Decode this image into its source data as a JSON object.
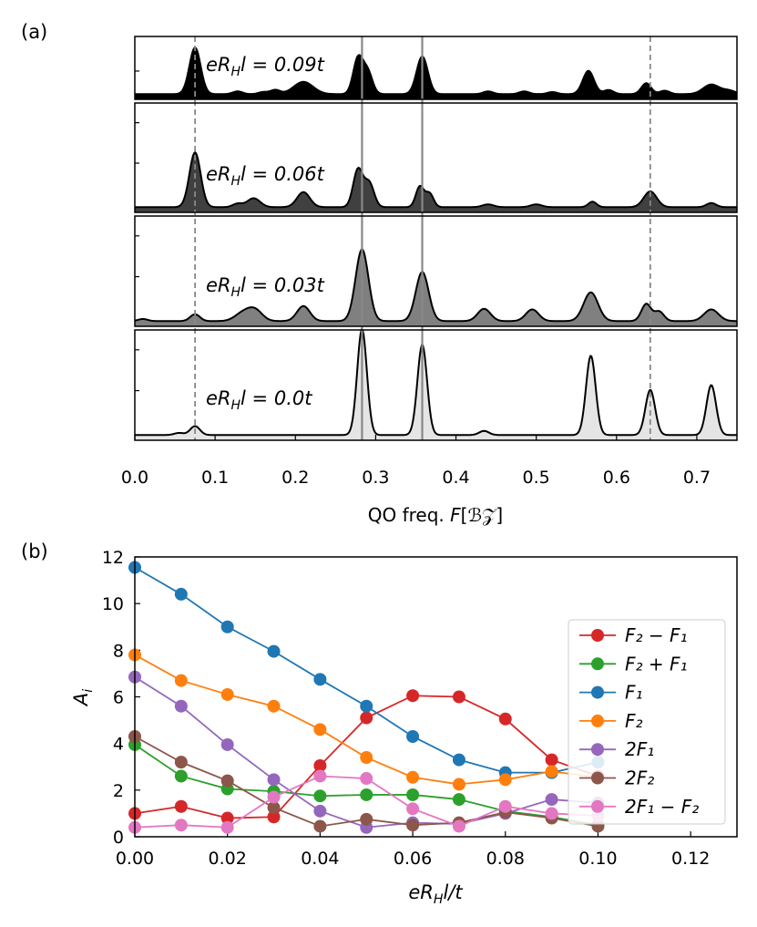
{
  "chart_data": [
    {
      "type": "area",
      "panel": "(a)",
      "xlabel_prefix": "QO freq. ",
      "xlabel_var": "F",
      "xlabel_unit": "[ℬ𝒵]",
      "xlim": [
        0.0,
        0.75
      ],
      "xticks": [
        "0.0",
        "0.1",
        "0.2",
        "0.3",
        "0.4",
        "0.5",
        "0.6",
        "0.7"
      ],
      "vlines_solid": [
        0.283,
        0.358
      ],
      "vlines_dashed": [
        0.075,
        0.642
      ],
      "series": [
        {
          "name": "0.09t",
          "label_lhs": "eR",
          "label_sub": "H",
          "label_mid": "l = 0.09",
          "label_t": "t",
          "fill": "#000000",
          "peaks": [
            [
              0.075,
              0.68,
              0.007
            ],
            [
              0.128,
              0.04,
              0.006
            ],
            [
              0.16,
              0.03,
              0.006
            ],
            [
              0.175,
              0.06,
              0.006
            ],
            [
              0.21,
              0.18,
              0.012
            ],
            [
              0.278,
              0.52,
              0.006
            ],
            [
              0.29,
              0.32,
              0.006
            ],
            [
              0.358,
              0.55,
              0.007
            ],
            [
              0.44,
              0.04,
              0.006
            ],
            [
              0.485,
              0.04,
              0.006
            ],
            [
              0.52,
              0.03,
              0.006
            ],
            [
              0.565,
              0.34,
              0.007
            ],
            [
              0.59,
              0.06,
              0.006
            ],
            [
              0.637,
              0.16,
              0.006
            ],
            [
              0.66,
              0.05,
              0.006
            ],
            [
              0.718,
              0.14,
              0.01
            ],
            [
              0.74,
              0.05,
              0.008
            ]
          ]
        },
        {
          "name": "0.06t",
          "label_lhs": "eR",
          "label_sub": "H",
          "label_mid": "l = 0.06",
          "label_t": "t",
          "fill": "#404040",
          "peaks": [
            [
              0.075,
              0.8,
              0.007
            ],
            [
              0.128,
              0.05,
              0.006
            ],
            [
              0.148,
              0.13,
              0.008
            ],
            [
              0.21,
              0.22,
              0.008
            ],
            [
              0.278,
              0.55,
              0.006
            ],
            [
              0.292,
              0.35,
              0.006
            ],
            [
              0.355,
              0.3,
              0.005
            ],
            [
              0.367,
              0.2,
              0.005
            ],
            [
              0.44,
              0.04,
              0.007
            ],
            [
              0.5,
              0.04,
              0.007
            ],
            [
              0.57,
              0.08,
              0.005
            ],
            [
              0.642,
              0.23,
              0.008
            ],
            [
              0.718,
              0.06,
              0.006
            ]
          ]
        },
        {
          "name": "0.03t",
          "label_lhs": "eR",
          "label_sub": "H",
          "label_mid": "l = 0.03",
          "label_t": "t",
          "fill": "#808080",
          "peaks": [
            [
              0.01,
              0.03,
              0.006
            ],
            [
              0.075,
              0.1,
              0.006
            ],
            [
              0.135,
              0.12,
              0.01
            ],
            [
              0.15,
              0.15,
              0.009
            ],
            [
              0.21,
              0.22,
              0.008
            ],
            [
              0.283,
              1.05,
              0.008
            ],
            [
              0.358,
              0.72,
              0.008
            ],
            [
              0.435,
              0.18,
              0.008
            ],
            [
              0.495,
              0.17,
              0.008
            ],
            [
              0.568,
              0.42,
              0.009
            ],
            [
              0.637,
              0.25,
              0.006
            ],
            [
              0.653,
              0.14,
              0.006
            ],
            [
              0.718,
              0.17,
              0.009
            ]
          ]
        },
        {
          "name": "0.0t",
          "label_lhs": "eR",
          "label_sub": "H",
          "label_mid": "l = 0.0",
          "label_t": "t",
          "fill": "#e5e5e5",
          "peaks": [
            [
              0.055,
              0.03,
              0.006
            ],
            [
              0.075,
              0.13,
              0.006
            ],
            [
              0.283,
              1.55,
              0.006
            ],
            [
              0.358,
              1.32,
              0.006
            ],
            [
              0.435,
              0.06,
              0.006
            ],
            [
              0.568,
              1.16,
              0.006
            ],
            [
              0.642,
              0.66,
              0.006
            ],
            [
              0.718,
              0.73,
              0.006
            ]
          ]
        }
      ]
    },
    {
      "type": "line",
      "panel": "(b)",
      "xlabel_prefix": "eR",
      "xlabel_sub": "H",
      "xlabel_suffix": "l/t",
      "ylabel_main": "A",
      "ylabel_sub": "i",
      "xlim": [
        0.0,
        0.13
      ],
      "ylim": [
        0,
        12
      ],
      "xticks": [
        "0.00",
        "0.02",
        "0.04",
        "0.06",
        "0.08",
        "0.10",
        "0.12"
      ],
      "yticks": [
        "0",
        "2",
        "4",
        "6",
        "8",
        "10",
        "12"
      ],
      "x": [
        0.0,
        0.01,
        0.02,
        0.03,
        0.04,
        0.05,
        0.06,
        0.07,
        0.08,
        0.09,
        0.1
      ],
      "legend_position": "center-right",
      "series": [
        {
          "name": "F₂ − F₁",
          "color": "#d62728",
          "values": [
            1.0,
            1.3,
            0.8,
            0.85,
            3.05,
            5.1,
            6.05,
            6.0,
            5.05,
            3.3,
            2.6
          ]
        },
        {
          "name": "F₂ + F₁",
          "color": "#2ca02c",
          "values": [
            3.95,
            2.6,
            2.05,
            1.95,
            1.75,
            1.8,
            1.8,
            1.6,
            1.1,
            0.85,
            0.5
          ]
        },
        {
          "name": "F₁",
          "color": "#1f77b4",
          "values": [
            11.55,
            10.4,
            9.0,
            7.95,
            6.75,
            5.6,
            4.3,
            3.3,
            2.75,
            2.75,
            3.2
          ]
        },
        {
          "name": "F₂",
          "color": "#ff7f0e",
          "values": [
            7.8,
            6.7,
            6.1,
            5.6,
            4.6,
            3.4,
            2.55,
            2.25,
            2.45,
            2.8,
            2.55
          ]
        },
        {
          "name": "2F₁",
          "color": "#9467bd",
          "values": [
            6.85,
            5.6,
            3.95,
            2.45,
            1.1,
            0.4,
            0.6,
            0.55,
            1.0,
            1.6,
            1.45
          ]
        },
        {
          "name": "2F₂",
          "color": "#8c564b",
          "values": [
            4.3,
            3.2,
            2.4,
            1.25,
            0.45,
            0.75,
            0.5,
            0.6,
            1.05,
            0.8,
            0.45
          ]
        },
        {
          "name": "2F₁ − F₂",
          "color": "#e377c2",
          "values": [
            0.4,
            0.5,
            0.4,
            1.7,
            2.6,
            2.5,
            1.2,
            0.45,
            1.3,
            1.0,
            0.9
          ]
        }
      ]
    }
  ]
}
